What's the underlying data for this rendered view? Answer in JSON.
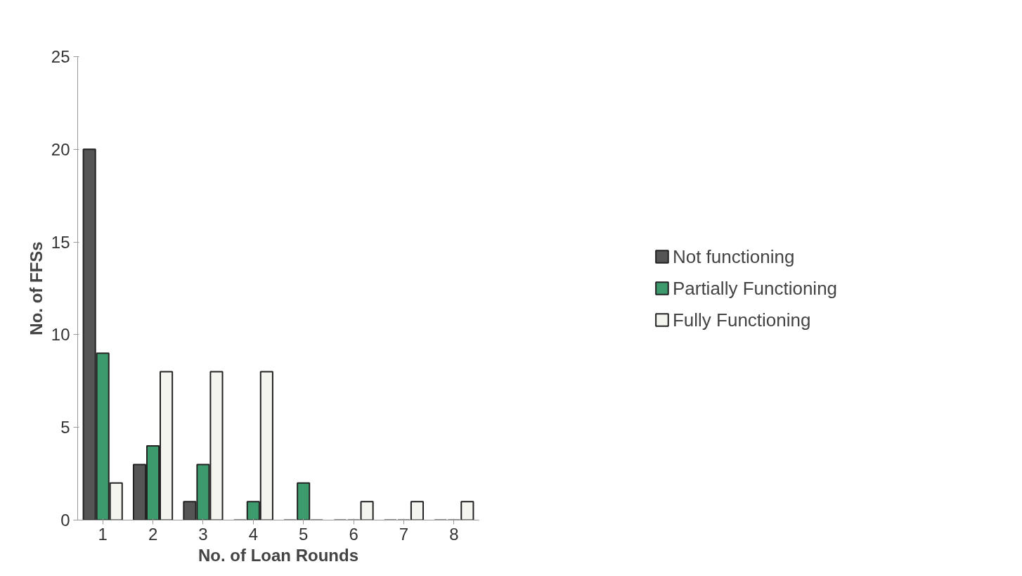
{
  "chart_data": {
    "type": "bar",
    "xlabel": "No. of Loan Rounds",
    "ylabel": "No. of FFSs",
    "categories": [
      "1",
      "2",
      "3",
      "4",
      "5",
      "6",
      "7",
      "8"
    ],
    "series": [
      {
        "name": "Not functioning",
        "color": "#555555",
        "values": [
          20,
          3,
          1,
          0,
          0,
          0,
          0,
          0
        ]
      },
      {
        "name": "Partially Functioning",
        "color": "#3c9a6c",
        "values": [
          9,
          4,
          3,
          1,
          2,
          0,
          0,
          0
        ]
      },
      {
        "name": "Fully Functioning",
        "color": "#f5f5f0",
        "values": [
          2,
          8,
          8,
          8,
          0,
          1,
          1,
          1
        ]
      }
    ],
    "ylim": [
      0,
      25
    ],
    "yticks": [
      0,
      5,
      10,
      15,
      20,
      25
    ],
    "legend": "right"
  }
}
